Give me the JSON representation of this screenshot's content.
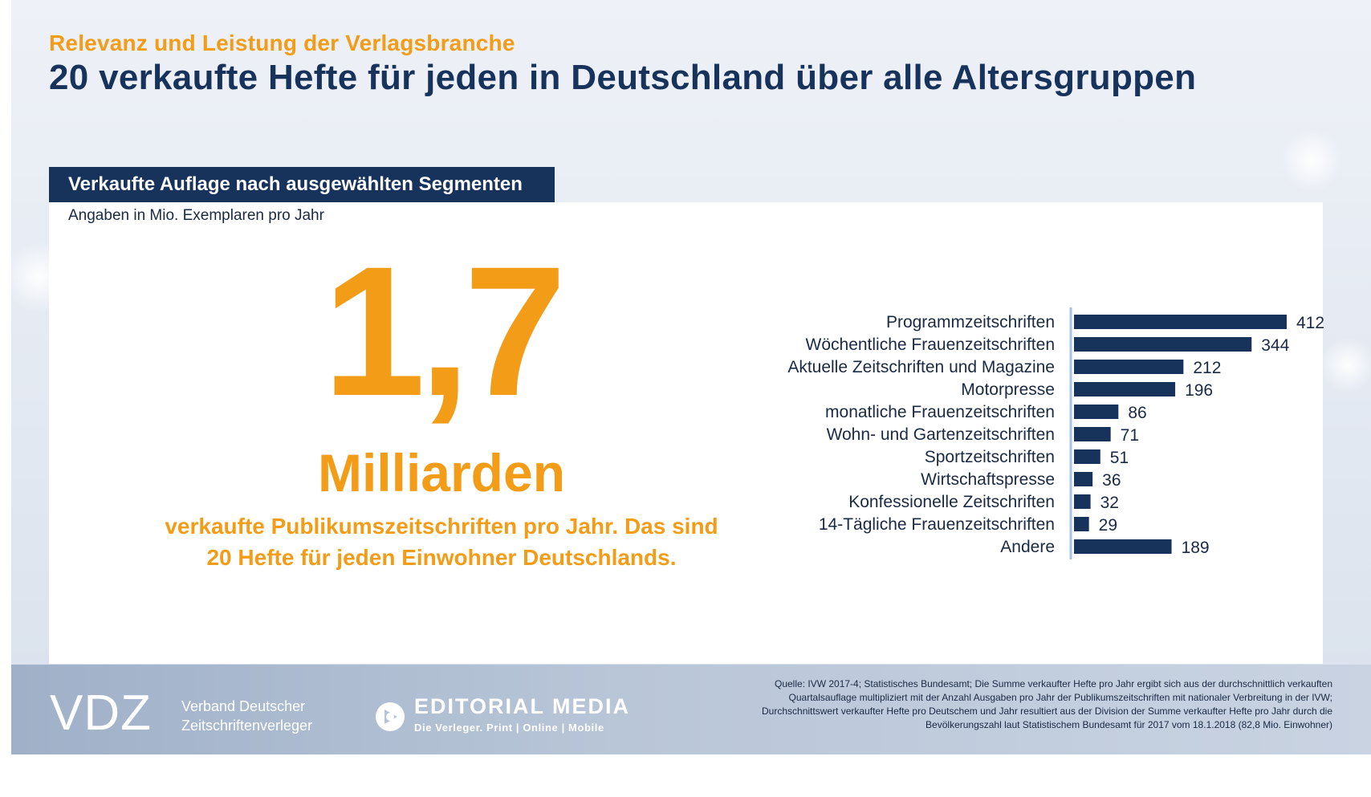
{
  "header": {
    "kicker": "Relevanz und Leistung der Verlagsbranche",
    "title": "20 verkaufte Hefte für jeden in Deutschland über alle Altersgruppen"
  },
  "panel": {
    "tab_title": "Verkaufte Auflage nach ausgewählten Segmenten",
    "unit_note": "Angaben in Mio. Exemplaren pro Jahr"
  },
  "highlight": {
    "number": "1,7",
    "unit": "Milliarden",
    "description_line1": "verkaufte Publikumszeitschriften pro Jahr. Das sind",
    "description_line2": "20 Hefte für jeden Einwohner Deutschlands."
  },
  "chart_data": {
    "type": "bar",
    "orientation": "horizontal",
    "categories": [
      "Programmzeitschriften",
      "Wöchentliche Frauenzeitschriften",
      "Aktuelle Zeitschriften und Magazine",
      "Motorpresse",
      "monatliche Frauenzeitschriften",
      "Wohn- und Gartenzeitschriften",
      "Sportzeitschriften",
      "Wirtschaftspresse",
      "Konfessionelle Zeitschriften",
      "14-Tägliche Frauenzeitschriften",
      "Andere"
    ],
    "values": [
      412,
      344,
      212,
      196,
      86,
      71,
      51,
      36,
      32,
      29,
      189
    ],
    "title": "Verkaufte Auflage nach ausgewählten Segmenten",
    "xlabel": "",
    "ylabel": "",
    "xlim": [
      0,
      412
    ],
    "grid": false,
    "bar_color": "#17335c",
    "axis_color": "#a9c3e6"
  },
  "footer": {
    "vdz_logo": "VDZ",
    "vdz_org_line1": "Verband Deutscher",
    "vdz_org_line2": "Zeitschriftenverleger",
    "em_name": "EDITORIAL MEDIA",
    "em_tagline": "Die Verleger. Print | Online | Mobile",
    "source_lines": [
      "Quelle: IVW 2017-4; Statistisches Bundesamt; Die Summe verkaufter Hefte pro Jahr ergibt sich aus der durchschnittlich verkauften",
      "Quartalsauflage multipliziert mit der Anzahl Ausgaben pro Jahr der Publikumszeitschriften mit nationaler Verbreitung in der IVW;",
      "Durchschnittswert verkaufter Hefte pro Deutschem und Jahr resultiert aus der Division der Summe verkaufter Hefte pro Jahr durch die",
      "Bevölkerungszahl laut Statistischem Bundesamt für 2017 vom 18.1.2018 (82,8 Mio. Einwohner)"
    ]
  },
  "colors": {
    "accent_orange": "#f39c17",
    "navy": "#17335c",
    "white": "#ffffff"
  }
}
